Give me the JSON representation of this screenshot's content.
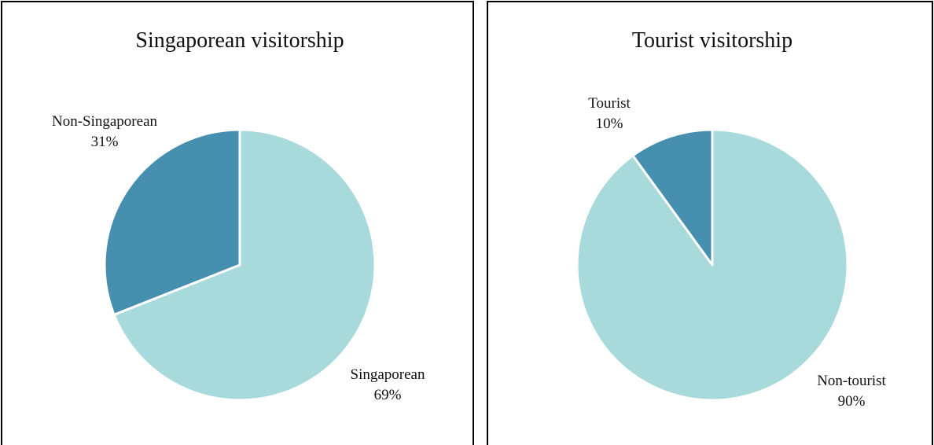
{
  "chart_data": [
    {
      "type": "pie",
      "title": "Singaporean visitorship",
      "categories": [
        "Singaporean",
        "Non-Singaporean"
      ],
      "values": [
        69,
        31
      ],
      "value_labels": [
        "69%",
        "31%"
      ],
      "colors": [
        "#a8dadc",
        "#468faf"
      ]
    },
    {
      "type": "pie",
      "title": "Tourist visitorship",
      "categories": [
        "Non-tourist",
        "Tourist"
      ],
      "values": [
        90,
        10
      ],
      "value_labels": [
        "90%",
        "10%"
      ],
      "colors": [
        "#a8dadc",
        "#468faf"
      ]
    }
  ]
}
